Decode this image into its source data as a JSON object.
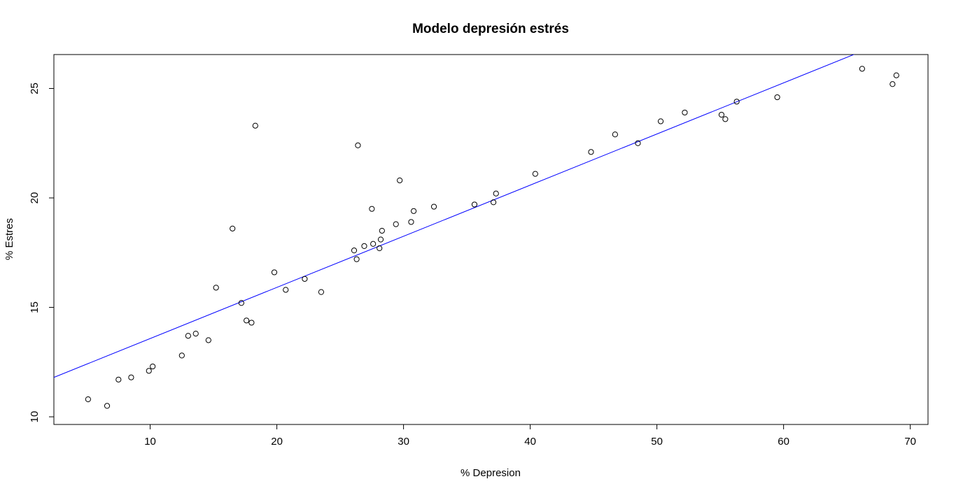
{
  "chart_data": {
    "type": "scatter",
    "title": "Modelo depresión estrés",
    "xlabel": "% Depresion",
    "ylabel": "% Estres",
    "xlim": [
      2.4,
      71.4
    ],
    "ylim": [
      9.65,
      26.55
    ],
    "xticks": [
      10,
      20,
      30,
      40,
      50,
      60,
      70
    ],
    "yticks": [
      10,
      15,
      20,
      25
    ],
    "grid": false,
    "legend": "none",
    "colors": {
      "points": "#000000",
      "fit_line": "#0000ff",
      "axes": "#000000"
    },
    "series": [
      {
        "values": [
          {
            "x": 5.1,
            "y": 10.8
          },
          {
            "x": 6.6,
            "y": 10.5
          },
          {
            "x": 7.5,
            "y": 11.7
          },
          {
            "x": 8.5,
            "y": 11.8
          },
          {
            "x": 9.9,
            "y": 12.1
          },
          {
            "x": 10.2,
            "y": 12.3
          },
          {
            "x": 12.5,
            "y": 12.8
          },
          {
            "x": 13.0,
            "y": 13.7
          },
          {
            "x": 13.6,
            "y": 13.8
          },
          {
            "x": 14.6,
            "y": 13.5
          },
          {
            "x": 15.2,
            "y": 15.9
          },
          {
            "x": 16.5,
            "y": 18.6
          },
          {
            "x": 17.2,
            "y": 15.2
          },
          {
            "x": 17.6,
            "y": 14.4
          },
          {
            "x": 18.0,
            "y": 14.3
          },
          {
            "x": 18.3,
            "y": 23.3
          },
          {
            "x": 19.8,
            "y": 16.6
          },
          {
            "x": 20.7,
            "y": 15.8
          },
          {
            "x": 22.2,
            "y": 16.3
          },
          {
            "x": 23.5,
            "y": 15.7
          },
          {
            "x": 26.1,
            "y": 17.6
          },
          {
            "x": 26.3,
            "y": 17.2
          },
          {
            "x": 26.4,
            "y": 22.4
          },
          {
            "x": 26.9,
            "y": 17.8
          },
          {
            "x": 27.5,
            "y": 19.5
          },
          {
            "x": 27.6,
            "y": 17.9
          },
          {
            "x": 28.1,
            "y": 17.7
          },
          {
            "x": 28.2,
            "y": 18.1
          },
          {
            "x": 28.3,
            "y": 18.5
          },
          {
            "x": 29.4,
            "y": 18.8
          },
          {
            "x": 29.7,
            "y": 20.8
          },
          {
            "x": 30.6,
            "y": 18.9
          },
          {
            "x": 30.8,
            "y": 19.4
          },
          {
            "x": 32.4,
            "y": 19.6
          },
          {
            "x": 35.6,
            "y": 19.7
          },
          {
            "x": 37.1,
            "y": 19.8
          },
          {
            "x": 37.3,
            "y": 20.2
          },
          {
            "x": 40.4,
            "y": 21.1
          },
          {
            "x": 44.8,
            "y": 22.1
          },
          {
            "x": 46.7,
            "y": 22.9
          },
          {
            "x": 48.5,
            "y": 22.5
          },
          {
            "x": 50.3,
            "y": 23.5
          },
          {
            "x": 52.2,
            "y": 23.9
          },
          {
            "x": 55.1,
            "y": 23.8
          },
          {
            "x": 55.4,
            "y": 23.6
          },
          {
            "x": 56.3,
            "y": 24.4
          },
          {
            "x": 59.5,
            "y": 24.6
          },
          {
            "x": 66.2,
            "y": 25.9
          },
          {
            "x": 68.6,
            "y": 25.2
          },
          {
            "x": 68.9,
            "y": 25.6
          }
        ]
      }
    ],
    "fit_line": {
      "intercept": 11.24,
      "slope": 0.2336
    }
  }
}
